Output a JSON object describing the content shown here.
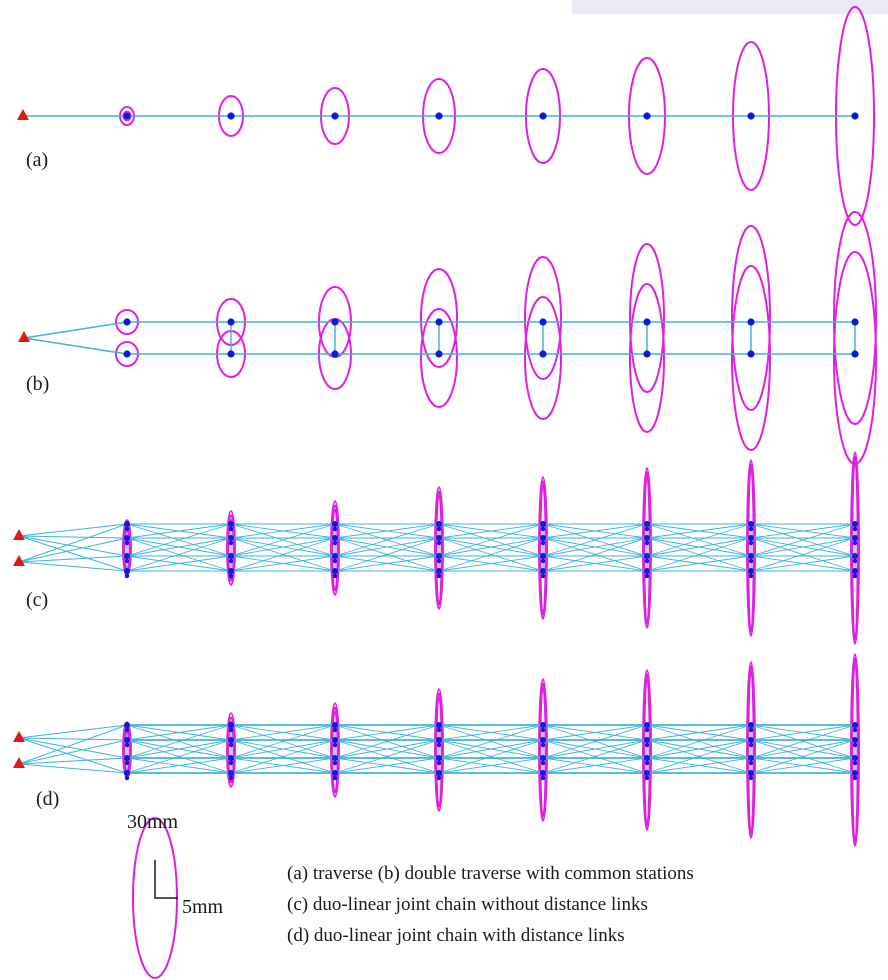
{
  "panels": [
    {
      "id": "a",
      "label": "(a)",
      "network": "traverse"
    },
    {
      "id": "b",
      "label": "(b)",
      "network": "double-traverse"
    },
    {
      "id": "c",
      "label": "(c)",
      "network": "joint-chain-no-distance"
    },
    {
      "id": "d",
      "label": "(d)",
      "network": "joint-chain-with-distance"
    }
  ],
  "scale": {
    "major_label": "30mm",
    "minor_label": "5mm"
  },
  "legend": [
    "(a) traverse   (b) double traverse with common stations",
    "(c) duo-linear joint chain without distance links",
    "(d) duo-linear joint chain with distance links"
  ],
  "colors": {
    "baseline": "#3fb4d8",
    "ellipse": "#e020e0",
    "station": "#0a1ad8",
    "control_point": "#e01818",
    "text": "#1a1a1a",
    "corner_patch": "#eceaf8"
  },
  "icons": {
    "control_point": "red-triangle-icon",
    "station": "blue-dot-icon",
    "error_ellipse": "error-ellipse-icon"
  }
}
